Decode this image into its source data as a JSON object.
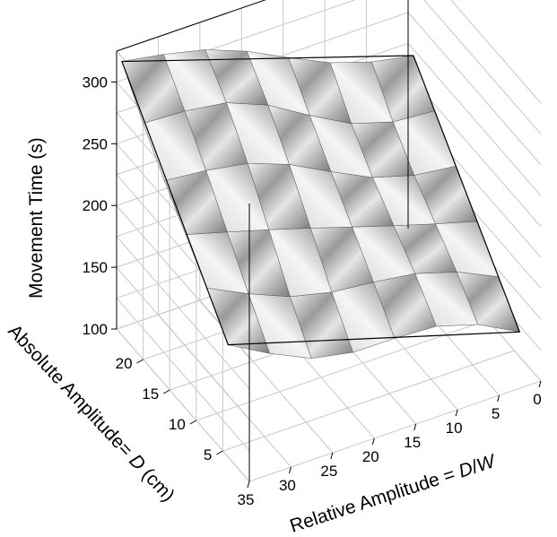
{
  "chart_data": {
    "type": "surface",
    "title": "",
    "xlabel": "Relative Amplitude = D/W",
    "ylabel": "Absolute Amplitude= D (cm)",
    "zlabel": "Movement Time (s)",
    "xlabel_parts": [
      "Relative Amplitude = ",
      "D",
      "/",
      "W"
    ],
    "ylabel_parts": [
      "Absolute Amplitude= ",
      "D",
      " (cm)"
    ],
    "x_ticks": [
      "35",
      "30",
      "25",
      "20",
      "15",
      "10",
      "5",
      "0"
    ],
    "y_ticks": [
      "5",
      "10",
      "15",
      "20"
    ],
    "z_ticks": [
      "100",
      "150",
      "200",
      "250",
      "300"
    ],
    "xlim": [
      0,
      35
    ],
    "ylim": [
      0,
      25
    ],
    "zlim": [
      100,
      325
    ],
    "grid": true,
    "surface_color": "#a8a8a8",
    "surface_corners": [
      {
        "x": 35,
        "y": 24,
        "z": 325
      },
      {
        "x": 35,
        "y": 4,
        "z": 185
      },
      {
        "x": 0,
        "y": 4,
        "z": 120
      },
      {
        "x": 0,
        "y": 24,
        "z": 245
      }
    ]
  }
}
